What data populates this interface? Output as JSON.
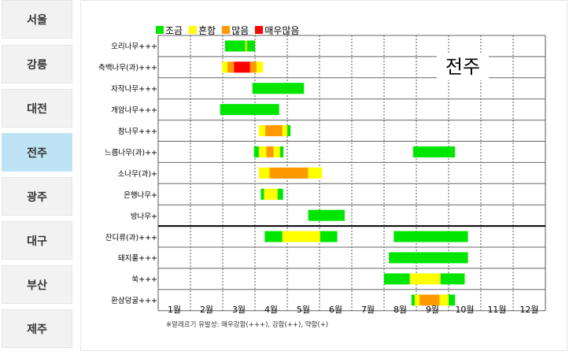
{
  "sidebar": {
    "cities": [
      "서울",
      "강릉",
      "대전",
      "전주",
      "광주",
      "대구",
      "부산",
      "제주"
    ],
    "active_index": 3
  },
  "legend": {
    "items": [
      {
        "label": "조금",
        "color": "#00e600"
      },
      {
        "label": "흔함",
        "color": "#ffff00"
      },
      {
        "label": "많음",
        "color": "#ff9900"
      },
      {
        "label": "매우많음",
        "color": "#ff0000"
      }
    ]
  },
  "chart_title": "전주",
  "note": "※알레르기 유발성: 매우강함(+++), 강함(++), 약함(+)",
  "chart_data": {
    "type": "bar",
    "x_unit": "month",
    "xlim": [
      1,
      13
    ],
    "months": [
      "1월",
      "2월",
      "3월",
      "4월",
      "5월",
      "6월",
      "7월",
      "8월",
      "9월",
      "10월",
      "11월",
      "12월"
    ],
    "levels": {
      "low": "조금",
      "common": "흔함",
      "many": "많음",
      "very_many": "매우많음"
    },
    "rows": [
      {
        "label": "오리나무+++",
        "group": 1,
        "segments": [
          {
            "start": 3.07,
            "end": 3.7,
            "level": "low"
          },
          {
            "start": 3.7,
            "end": 3.75,
            "level": "common"
          },
          {
            "start": 3.75,
            "end": 4.0,
            "level": "low"
          }
        ]
      },
      {
        "label": "측백나무(과)+++",
        "group": 1,
        "segments": [
          {
            "start": 2.98,
            "end": 3.15,
            "level": "common"
          },
          {
            "start": 3.15,
            "end": 3.35,
            "level": "many"
          },
          {
            "start": 3.35,
            "end": 3.85,
            "level": "very_many"
          },
          {
            "start": 3.85,
            "end": 4.05,
            "level": "many"
          },
          {
            "start": 4.05,
            "end": 4.25,
            "level": "common"
          }
        ]
      },
      {
        "label": "자작나무+++",
        "group": 1,
        "segments": [
          {
            "start": 3.92,
            "end": 5.52,
            "level": "low"
          }
        ]
      },
      {
        "label": "개암나무+++",
        "group": 1,
        "segments": [
          {
            "start": 2.92,
            "end": 4.75,
            "level": "low"
          }
        ]
      },
      {
        "label": "참나무+++",
        "group": 1,
        "segments": [
          {
            "start": 4.12,
            "end": 4.32,
            "level": "common"
          },
          {
            "start": 4.32,
            "end": 4.85,
            "level": "many"
          },
          {
            "start": 4.85,
            "end": 5.0,
            "level": "common"
          },
          {
            "start": 5.0,
            "end": 5.1,
            "level": "low"
          }
        ]
      },
      {
        "label": "느릅나무(과)++",
        "group": 1,
        "segments": [
          {
            "start": 3.97,
            "end": 4.12,
            "level": "low"
          },
          {
            "start": 4.12,
            "end": 4.35,
            "level": "common"
          },
          {
            "start": 4.35,
            "end": 4.58,
            "level": "many"
          },
          {
            "start": 4.58,
            "end": 4.78,
            "level": "common"
          },
          {
            "start": 4.78,
            "end": 4.88,
            "level": "low"
          },
          {
            "start": 8.9,
            "end": 10.2,
            "level": "low"
          }
        ]
      },
      {
        "label": "소나무(과)+",
        "group": 1,
        "segments": [
          {
            "start": 4.12,
            "end": 4.45,
            "level": "common"
          },
          {
            "start": 4.45,
            "end": 5.65,
            "level": "many"
          },
          {
            "start": 5.65,
            "end": 6.08,
            "level": "common"
          }
        ]
      },
      {
        "label": "은행나무+",
        "group": 1,
        "segments": [
          {
            "start": 4.18,
            "end": 4.28,
            "level": "low"
          },
          {
            "start": 4.28,
            "end": 4.7,
            "level": "common"
          },
          {
            "start": 4.7,
            "end": 4.87,
            "level": "low"
          }
        ]
      },
      {
        "label": "방나무+",
        "group": 1,
        "segments": [
          {
            "start": 5.65,
            "end": 6.78,
            "level": "low"
          }
        ]
      },
      {
        "label": "잔디류(과)+++",
        "group": 2,
        "segments": [
          {
            "start": 4.3,
            "end": 4.85,
            "level": "low"
          },
          {
            "start": 4.85,
            "end": 6.02,
            "level": "common"
          },
          {
            "start": 6.02,
            "end": 6.55,
            "level": "low"
          },
          {
            "start": 8.3,
            "end": 10.6,
            "level": "low"
          }
        ]
      },
      {
        "label": "돼지풀+++",
        "group": 2,
        "segments": [
          {
            "start": 8.15,
            "end": 10.6,
            "level": "low"
          }
        ]
      },
      {
        "label": "쑥+++",
        "group": 2,
        "segments": [
          {
            "start": 8.0,
            "end": 8.8,
            "level": "low"
          },
          {
            "start": 8.8,
            "end": 9.75,
            "level": "common"
          },
          {
            "start": 9.75,
            "end": 10.5,
            "level": "low"
          }
        ]
      },
      {
        "label": "환삼덩굴+++",
        "group": 2,
        "segments": [
          {
            "start": 8.85,
            "end": 8.95,
            "level": "low"
          },
          {
            "start": 8.95,
            "end": 9.1,
            "level": "common"
          },
          {
            "start": 9.1,
            "end": 9.72,
            "level": "many"
          },
          {
            "start": 9.72,
            "end": 10.0,
            "level": "common"
          },
          {
            "start": 10.0,
            "end": 10.2,
            "level": "low"
          }
        ]
      }
    ]
  }
}
